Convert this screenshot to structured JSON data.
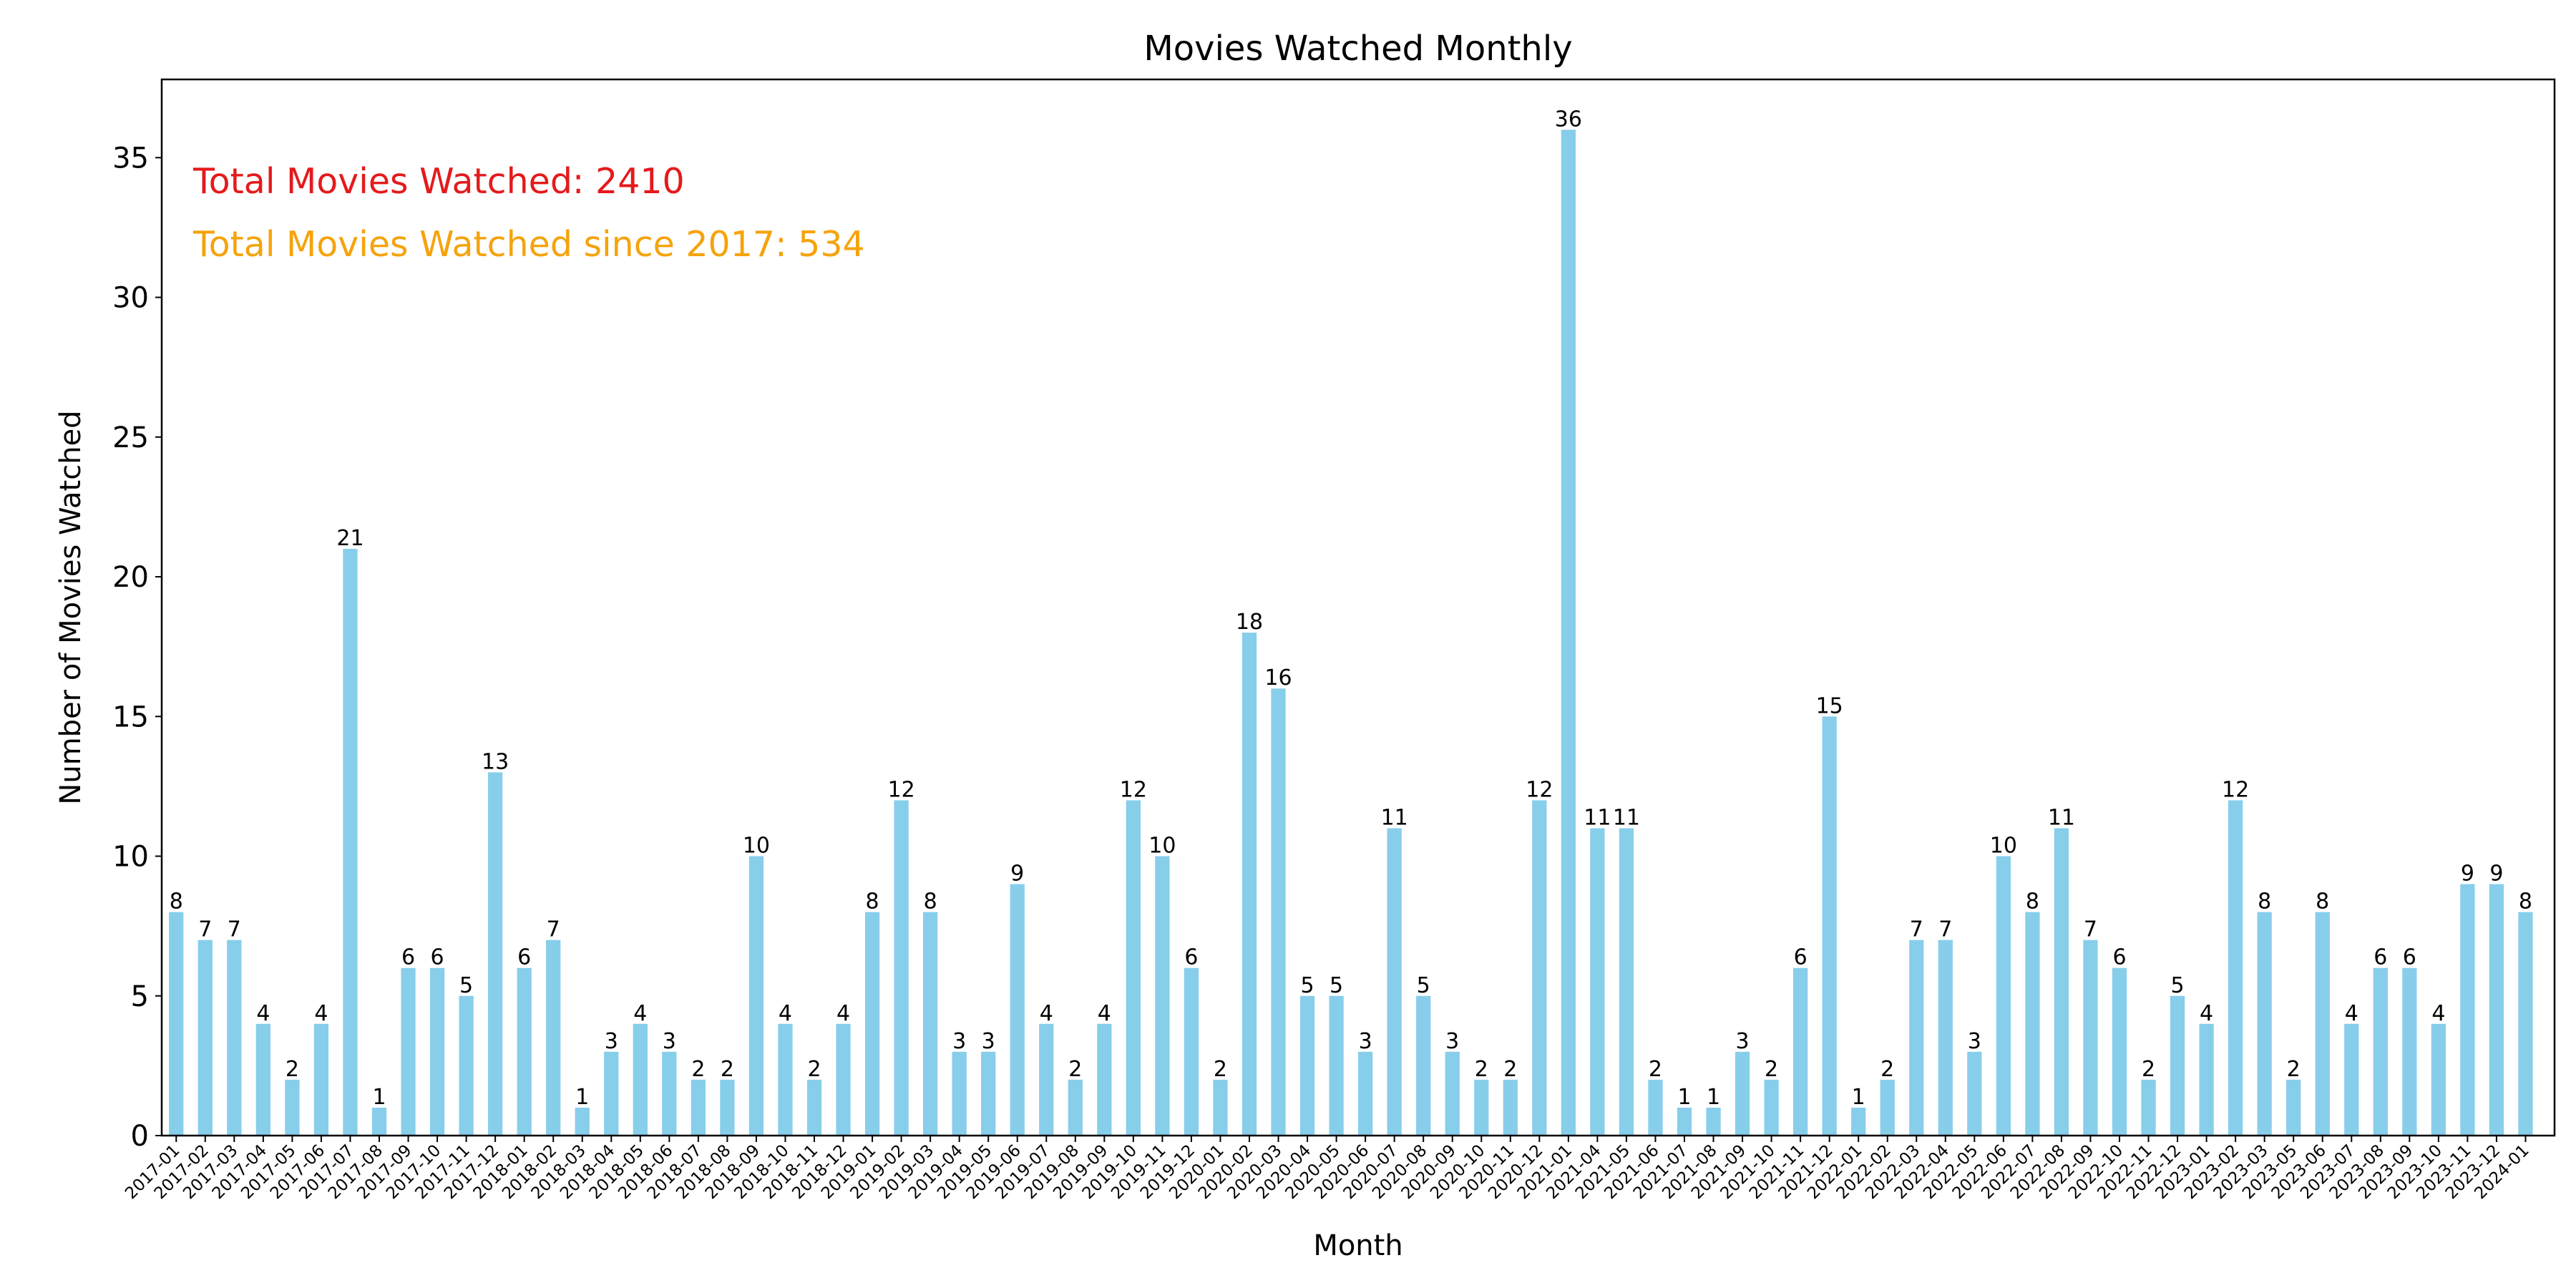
{
  "chart_data": {
    "type": "bar",
    "title": "Movies Watched Monthly",
    "xlabel": "Month",
    "ylabel": "Number of Movies Watched",
    "ylim": [
      0,
      37.8
    ],
    "yticks": [
      0,
      5,
      10,
      15,
      20,
      25,
      30,
      35
    ],
    "grid": false,
    "legend": "none",
    "bar_color": "#87CEEB",
    "categories": [
      "2017-01",
      "2017-02",
      "2017-03",
      "2017-04",
      "2017-05",
      "2017-06",
      "2017-07",
      "2017-08",
      "2017-09",
      "2017-10",
      "2017-11",
      "2017-12",
      "2018-01",
      "2018-02",
      "2018-03",
      "2018-04",
      "2018-05",
      "2018-06",
      "2018-07",
      "2018-08",
      "2018-09",
      "2018-10",
      "2018-11",
      "2018-12",
      "2019-01",
      "2019-02",
      "2019-03",
      "2019-04",
      "2019-05",
      "2019-06",
      "2019-07",
      "2019-08",
      "2019-09",
      "2019-10",
      "2019-11",
      "2019-12",
      "2020-01",
      "2020-02",
      "2020-03",
      "2020-04",
      "2020-05",
      "2020-06",
      "2020-07",
      "2020-08",
      "2020-09",
      "2020-10",
      "2020-11",
      "2020-12",
      "2021-01",
      "2021-04",
      "2021-05",
      "2021-06",
      "2021-07",
      "2021-08",
      "2021-09",
      "2021-10",
      "2021-11",
      "2021-12",
      "2022-01",
      "2022-02",
      "2022-03",
      "2022-04",
      "2022-05",
      "2022-06",
      "2022-07",
      "2022-08",
      "2022-09",
      "2022-10",
      "2022-11",
      "2022-12",
      "2023-01",
      "2023-02",
      "2023-03",
      "2023-05",
      "2023-06",
      "2023-07",
      "2023-08",
      "2023-09",
      "2023-10",
      "2023-11",
      "2023-12",
      "2024-01"
    ],
    "values": [
      8,
      7,
      7,
      4,
      2,
      4,
      21,
      1,
      6,
      6,
      5,
      13,
      6,
      7,
      1,
      3,
      4,
      3,
      2,
      2,
      10,
      4,
      2,
      4,
      8,
      12,
      8,
      3,
      3,
      9,
      4,
      2,
      4,
      12,
      10,
      6,
      2,
      18,
      16,
      5,
      5,
      3,
      11,
      5,
      3,
      2,
      2,
      12,
      36,
      11,
      11,
      2,
      1,
      1,
      3,
      2,
      6,
      15,
      1,
      2,
      7,
      7,
      3,
      10,
      8,
      11,
      7,
      6,
      2,
      5,
      4,
      12,
      8,
      2,
      8,
      4,
      6,
      6,
      4,
      9,
      9,
      8
    ],
    "annotations": [
      {
        "text": "Total Movies Watched: 2410",
        "color": "#E41A1C"
      },
      {
        "text": "Total Movies Watched since 2017: 534",
        "color": "#F5A30C"
      }
    ]
  }
}
